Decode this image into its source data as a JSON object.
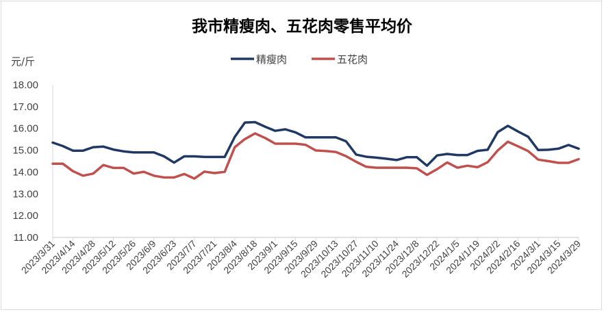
{
  "chart_data": {
    "type": "line",
    "title": "我市精瘦肉、五花肉零售平均价",
    "ylabel": "元/斤",
    "xlabel": "",
    "ylim": [
      11,
      18
    ],
    "yticks": [
      "11.00",
      "12.00",
      "13.00",
      "14.00",
      "15.00",
      "16.00",
      "17.00",
      "18.00"
    ],
    "grid": false,
    "legend_position": "top",
    "x_tick_labels": [
      "2023/3/31",
      "2023/4/14",
      "2023/4/28",
      "2023/5/12",
      "2023/5/26",
      "2023/6/9",
      "2023/6/23",
      "2023/7/7",
      "2023/7/21",
      "2023/8/4",
      "2023/8/18",
      "2023/9/1",
      "2023/9/15",
      "2023/9/29",
      "2023/10/13",
      "2023/10/27",
      "2023/11/10",
      "2023/11/24",
      "2023/12/8",
      "2023/12/22",
      "2024/1/5",
      "2024/1/19",
      "2024/2/2",
      "2024/2/16",
      "2024/3/1",
      "2024/3/15",
      "2024/3/29"
    ],
    "x_frequency": "weekly",
    "series": [
      {
        "name": "精瘦肉",
        "color": "#1f3864",
        "values": [
          15.35,
          15.19,
          14.98,
          14.98,
          15.14,
          15.17,
          15.03,
          14.95,
          14.9,
          14.9,
          14.9,
          14.72,
          14.43,
          14.72,
          14.72,
          14.69,
          14.69,
          14.69,
          15.61,
          16.27,
          16.29,
          16.08,
          15.89,
          15.96,
          15.82,
          15.59,
          15.59,
          15.59,
          15.59,
          15.41,
          14.8,
          14.7,
          14.66,
          14.61,
          14.55,
          14.68,
          14.68,
          14.29,
          14.76,
          14.83,
          14.78,
          14.78,
          14.97,
          15.02,
          15.83,
          16.12,
          15.86,
          15.62,
          15.01,
          15.02,
          15.07,
          15.24,
          15.07
        ]
      },
      {
        "name": "五花肉",
        "color": "#c0504d",
        "values": [
          14.38,
          14.38,
          14.04,
          13.83,
          13.93,
          14.32,
          14.19,
          14.19,
          13.93,
          14.01,
          13.83,
          13.75,
          13.75,
          13.91,
          13.7,
          14.02,
          13.95,
          14.01,
          15.14,
          15.51,
          15.77,
          15.56,
          15.3,
          15.3,
          15.3,
          15.25,
          14.99,
          14.96,
          14.92,
          14.73,
          14.47,
          14.24,
          14.2,
          14.2,
          14.2,
          14.2,
          14.17,
          13.87,
          14.13,
          14.44,
          14.2,
          14.29,
          14.22,
          14.45,
          14.99,
          15.39,
          15.18,
          14.96,
          14.57,
          14.5,
          14.42,
          14.42,
          14.59
        ]
      }
    ]
  }
}
